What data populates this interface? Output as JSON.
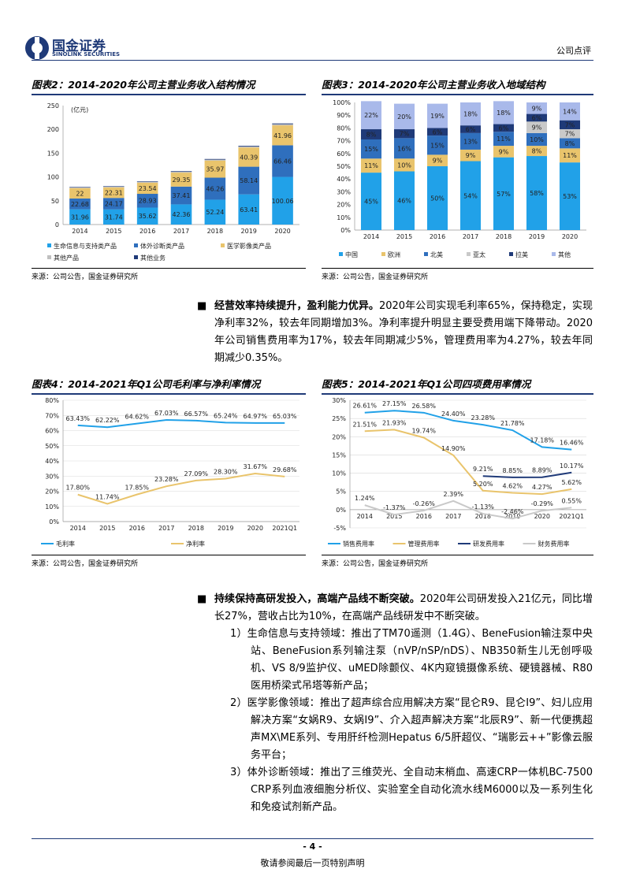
{
  "header": {
    "brand": "国金证券",
    "brand_en": "SINOLINK SECURITIES",
    "doc_type": "公司点评"
  },
  "chart_data": [
    {
      "type": "bar",
      "stacked": true,
      "title": "图表2：2014-2020年公司主营业务收入结构情况",
      "y_label": "(亿元)",
      "source": "来源：公司公告，国金证券研究所",
      "categories": [
        "2014",
        "2015",
        "2016",
        "2017",
        "2018",
        "2019",
        "2020"
      ],
      "ylim": [
        0,
        250
      ],
      "yticks": [
        0,
        50,
        100,
        150,
        200,
        250
      ],
      "grid": false,
      "data_labels": true,
      "series": [
        {
          "name": "生命信息与支持类产品",
          "color": "#21a1e8",
          "values": [
            31.96,
            31.74,
            35.62,
            42.36,
            52.24,
            63.41,
            100.06
          ]
        },
        {
          "name": "体外诊断类产品",
          "color": "#2f6fbd",
          "values": [
            22.68,
            24.17,
            28.93,
            37.41,
            46.26,
            58.14,
            66.46
          ]
        },
        {
          "name": "医学影像类产品",
          "color": "#e9c46c",
          "values": [
            22,
            22.31,
            23.54,
            29.35,
            35.97,
            40.39,
            41.96
          ]
        },
        {
          "name": "其他产品",
          "color": "#bfbfbf",
          "values": [
            1.5,
            1.5,
            1.6,
            1.8,
            2,
            2.2,
            2.5
          ]
        },
        {
          "name": "其他业务",
          "color": "#1f3a78",
          "values": [
            1,
            1,
            1.1,
            1.2,
            1.3,
            1.4,
            1.5
          ]
        }
      ]
    },
    {
      "type": "bar",
      "stacked": true,
      "title": "图表3：2014-2020年公司主营业务收入地域结构",
      "source": "来源：公司公告，国金证券研究所",
      "categories": [
        "2014",
        "2015",
        "2016",
        "2017",
        "2018",
        "2019",
        "2020"
      ],
      "ylim": [
        0,
        100
      ],
      "yticks": [
        {
          "value": 0,
          "label": "0%"
        },
        {
          "value": 10,
          "label": "10%"
        },
        {
          "value": 20,
          "label": "20%"
        },
        {
          "value": 30,
          "label": "30%"
        },
        {
          "value": 40,
          "label": "40%"
        },
        {
          "value": 50,
          "label": "50%"
        },
        {
          "value": 60,
          "label": "60%"
        },
        {
          "value": 70,
          "label": "70%"
        },
        {
          "value": 80,
          "label": "80%"
        },
        {
          "value": 90,
          "label": "90%"
        },
        {
          "value": 100,
          "label": "100%"
        }
      ],
      "grid": false,
      "data_labels": true,
      "series": [
        {
          "name": "中国",
          "color": "#21a1e8",
          "values": [
            45,
            46,
            50,
            54,
            57,
            58,
            53
          ],
          "value_labels": [
            "45%",
            "46%",
            "50%",
            "54%",
            "57%",
            "58%",
            "53%"
          ]
        },
        {
          "name": "欧洲",
          "color": "#e9c46c",
          "values": [
            11,
            10,
            9,
            9,
            9,
            8,
            11
          ],
          "value_labels": [
            "11%",
            "10%",
            "9%",
            "9%",
            "9%",
            "8%",
            "11%"
          ]
        },
        {
          "name": "北美",
          "color": "#2f6fbd",
          "values": [
            15,
            16,
            15,
            13,
            11,
            10,
            8
          ],
          "value_labels": [
            "15%",
            "16%",
            "15%",
            "13%",
            "11%",
            "10%",
            "8%"
          ]
        },
        {
          "name": "亚太",
          "color": "#c9c9c9",
          "values": [
            null,
            null,
            null,
            null,
            null,
            9,
            7
          ],
          "value_labels": [
            null,
            null,
            null,
            null,
            null,
            "9%",
            "7%"
          ]
        },
        {
          "name": "拉美",
          "color": "#1f3a78",
          "values": [
            8,
            7,
            6,
            6,
            6,
            6,
            7
          ],
          "value_labels": [
            "8%",
            "7%",
            "6%",
            "6%",
            "6%",
            "6%",
            "7%"
          ]
        },
        {
          "name": "其他",
          "color": "#a9b9ea",
          "values": [
            22,
            20,
            19,
            18,
            18,
            9,
            14
          ],
          "value_labels": [
            "22%",
            "20%",
            "19%",
            "18%",
            "18%",
            "9%",
            "14%"
          ]
        }
      ]
    },
    {
      "type": "line",
      "title": "图表4：2014-2021年Q1公司毛利率与净利率情况",
      "source": "来源：公司公告，国金证券研究所",
      "categories": [
        "2014",
        "2015",
        "2016",
        "2017",
        "2018",
        "2019",
        "2020",
        "2021Q1"
      ],
      "ylim": [
        0,
        80
      ],
      "yticks": [
        {
          "value": 0,
          "label": "0%"
        },
        {
          "value": 10,
          "label": "10%"
        },
        {
          "value": 20,
          "label": "20%"
        },
        {
          "value": 30,
          "label": "30%"
        },
        {
          "value": 40,
          "label": "40%"
        },
        {
          "value": 50,
          "label": "50%"
        },
        {
          "value": 60,
          "label": "60%"
        },
        {
          "value": 70,
          "label": "70%"
        },
        {
          "value": 80,
          "label": "80%"
        }
      ],
      "grid": true,
      "series": [
        {
          "name": "毛利率",
          "color": "#21a1e8",
          "values": [
            63.43,
            62.22,
            64.62,
            67.03,
            66.57,
            65.24,
            64.97,
            65.03
          ],
          "value_labels": [
            "63.43%",
            "62.22%",
            "64.62%",
            "67.03%",
            "66.57%",
            "65.24%",
            "64.97%",
            "65.03%"
          ]
        },
        {
          "name": "净利率",
          "color": "#e9c46c",
          "values": [
            17.8,
            11.74,
            17.85,
            23.28,
            27.09,
            28.3,
            31.67,
            29.68
          ],
          "value_labels": [
            "17.80%",
            "11.74%",
            "17.85%",
            "23.28%",
            "27.09%",
            "28.30%",
            "31.67%",
            "29.68%"
          ]
        }
      ]
    },
    {
      "type": "line",
      "title": "图表5：2014-2021年Q1公司四项费用率情况",
      "source": "来源：公司公告，国金证券研究所",
      "categories": [
        "2014",
        "2015",
        "2016",
        "2017",
        "2018",
        "2019",
        "2020",
        "2021Q1"
      ],
      "ylim": [
        -5,
        30
      ],
      "yticks": [
        {
          "value": -5,
          "label": "-5%"
        },
        {
          "value": 0,
          "label": "0%"
        },
        {
          "value": 5,
          "label": "5%"
        },
        {
          "value": 10,
          "label": "10%"
        },
        {
          "value": 15,
          "label": "15%"
        },
        {
          "value": 20,
          "label": "20%"
        },
        {
          "value": 25,
          "label": "25%"
        },
        {
          "value": 30,
          "label": "30%"
        }
      ],
      "grid": true,
      "series": [
        {
          "name": "销售费用率",
          "color": "#21a1e8",
          "values": [
            26.61,
            27.15,
            26.58,
            24.4,
            23.28,
            21.78,
            17.18,
            16.46
          ],
          "value_labels": [
            "26.61%",
            "27.15%",
            "26.58%",
            "24.40%",
            "23.28%",
            "21.78%",
            "17.18%",
            "16.46%"
          ]
        },
        {
          "name": "管理费用率",
          "color": "#e9c46c",
          "values": [
            21.51,
            21.93,
            19.74,
            14.9,
            5.2,
            4.62,
            4.27,
            5.62
          ],
          "value_labels": [
            "21.51%",
            "21.93%",
            "19.74%",
            "14.90%",
            "5.20%",
            "4.62%",
            "4.27%",
            "5.62%"
          ]
        },
        {
          "name": "研发费用率",
          "color": "#1f3a78",
          "values": [
            null,
            null,
            null,
            null,
            9.21,
            8.85,
            8.89,
            10.17
          ],
          "value_labels": [
            null,
            null,
            null,
            null,
            "9.21%",
            "8.85%",
            "8.89%",
            "10.17%"
          ]
        },
        {
          "name": "财务费用率",
          "color": "#c9c9c9",
          "values": [
            1.24,
            -1.37,
            -0.26,
            2.39,
            -1.13,
            -2.46,
            -0.29,
            0.55
          ],
          "value_labels": [
            "1.24%",
            "-1.37%",
            "-0.26%",
            "2.39%",
            "-1.13%",
            "-2.46%",
            "-0.29%",
            "0.55%"
          ]
        }
      ]
    }
  ],
  "paragraphs": [
    {
      "bold": "经营效率持续提升，盈利能力优异。",
      "text": "2020年公司实现毛利率65%，保持稳定，实现净利率32%，较去年同期增加3%。净利率提升明显主要受费用端下降带动。2020年公司销售费用率为17%，较去年同期减少5%，管理费用率为4.27%，较去年同期减少0.35%。"
    },
    {
      "bold": "持续保持高研发投入，高端产品线不断突破。",
      "text": "2020年公司研发投入21亿元，同比增长27%，营收占比为10%，在高端产品线研发中不断突破。",
      "items": [
        "1）生命信息与支持领域：推出了TM70遥测（1.4G）、BeneFusion输注泵中央站、BeneFusion系列输注泵（nVP/nSP/nDS）、NB350新生儿无创呼吸机、VS 8/9监护仪、uMED除颤仪、4K内窥镜摄像系统、硬镜器械、R80医用桥梁式吊塔等新产品；",
        "2）医学影像领域：推出了超声综合应用解决方案“昆仑R9、昆仑I9”、妇儿应用解决方案“女娲R9、女娲I9”、介入超声解决方案“北辰R9”、新一代便携超声MX\\ME系列、专用肝纤检测Hepatus 6/5肝超仪、“瑞影云++”影像云服务平台；",
        "3）体外诊断领域：推出了三维荧光、全自动末梢血、高速CRP一体机BC-7500 CRP系列血液细胞分析仪、实验室全自动化流水线M6000以及一系列生化和免疫试剂新产品。"
      ]
    }
  ],
  "footer": {
    "page": "- 4 -",
    "disclaimer": "敬请参阅最后一页特别声明"
  }
}
